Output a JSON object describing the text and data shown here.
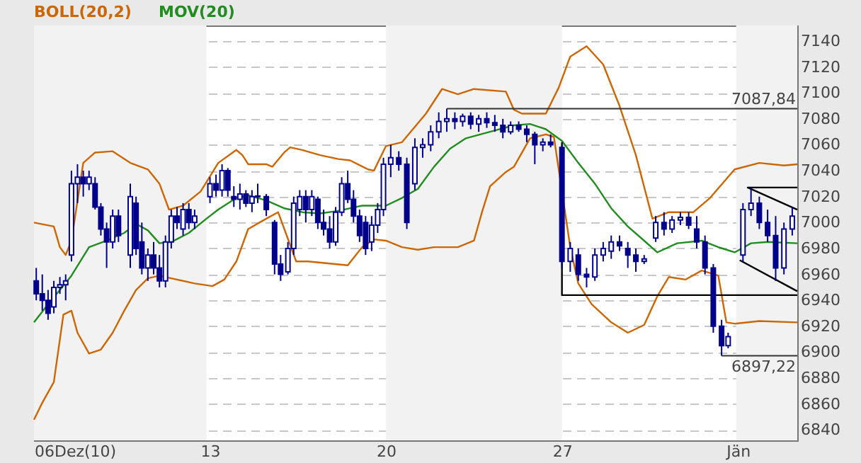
{
  "chart_data": {
    "type": "candlestick",
    "color": "#00008b",
    "x": [
      6.09,
      6.33,
      6.56,
      6.79,
      7.03,
      7.26,
      7.49,
      7.73,
      7.96,
      8.19,
      8.43,
      8.66,
      8.89,
      9.13,
      9.36,
      9.83,
      10.06,
      10.29,
      10.53,
      10.76,
      10.99,
      11.23,
      11.46,
      11.69,
      11.93,
      12.16,
      12.39,
      13,
      13.24,
      13.48,
      13.71,
      13.95,
      14.19,
      14.43,
      14.67,
      14.9,
      15.24,
      15.57,
      15.81,
      16.1,
      16.33,
      16.57,
      16.81,
      17.05,
      17.29,
      17.52,
      17.76,
      18,
      18.24,
      18.48,
      18.71,
      18.95,
      19.19,
      19.43,
      19.67,
      19.9,
      20.19,
      20.51,
      20.83,
      21.15,
      21.46,
      21.78,
      22.1,
      22.42,
      22.74,
      23.05,
      23.37,
      23.69,
      24.01,
      24.33,
      24.65,
      24.96,
      25.28,
      25.6,
      25.92,
      26.24,
      26.55,
      27,
      27.33,
      27.65,
      27.98,
      28.31,
      28.64,
      28.96,
      29.29,
      29.62,
      29.94,
      30.27,
      30.73,
      31.06,
      31.38,
      31.71,
      32.04,
      32.36,
      32.69,
      33.02,
      33.35,
      33.61,
      34.2,
      34.52,
      34.85,
      35.18,
      35.5,
      35.83,
      36.16
    ],
    "ohlc": [
      [
        6955,
        6965,
        6940,
        6945
      ],
      [
        6945,
        6960,
        6932,
        6940
      ],
      [
        6940,
        6948,
        6925,
        6930
      ],
      [
        6935,
        6955,
        6930,
        6950
      ],
      [
        6950,
        6958,
        6945,
        6952
      ],
      [
        6952,
        6960,
        6940,
        6955
      ],
      [
        6975,
        7040,
        6970,
        7030
      ],
      [
        7030,
        7045,
        7015,
        7035
      ],
      [
        7035,
        7040,
        7020,
        7030
      ],
      [
        7030,
        7040,
        7025,
        7035
      ],
      [
        7030,
        7035,
        7010,
        7012
      ],
      [
        7012,
        7015,
        6990,
        6995
      ],
      [
        6995,
        7000,
        6965,
        6985
      ],
      [
        6985,
        7010,
        6980,
        7005
      ],
      [
        7005,
        7010,
        6985,
        6990
      ],
      [
        6975,
        7030,
        6965,
        7020
      ],
      [
        7015,
        7020,
        6975,
        6980
      ],
      [
        6985,
        7000,
        6960,
        6965
      ],
      [
        6965,
        6980,
        6955,
        6975
      ],
      [
        6975,
        6985,
        6960,
        6965
      ],
      [
        6965,
        6975,
        6950,
        6955
      ],
      [
        6955,
        6990,
        6950,
        6985
      ],
      [
        6985,
        7010,
        6980,
        7005
      ],
      [
        7005,
        7012,
        6995,
        7000
      ],
      [
        6995,
        7015,
        6990,
        7010
      ],
      [
        7010,
        7015,
        6995,
        7000
      ],
      [
        7000,
        7010,
        6995,
        7005
      ],
      [
        7020,
        7035,
        7015,
        7030
      ],
      [
        7030,
        7037,
        7020,
        7025
      ],
      [
        7025,
        7045,
        7020,
        7040
      ],
      [
        7040,
        7042,
        7020,
        7025
      ],
      [
        7020,
        7028,
        7012,
        7018
      ],
      [
        7018,
        7030,
        7010,
        7022
      ],
      [
        7022,
        7025,
        7012,
        7015
      ],
      [
        7015,
        7025,
        7008,
        7020
      ],
      [
        7020,
        7030,
        7015,
        7020.5
      ],
      [
        7020,
        7022,
        7005,
        7010
      ],
      [
        7000,
        7002,
        6960,
        6968
      ],
      [
        6968,
        6975,
        6955,
        6960
      ],
      [
        6962,
        6985,
        6960,
        6980
      ],
      [
        6980,
        7020,
        6975,
        7015
      ],
      [
        7010,
        7025,
        7005,
        7020
      ],
      [
        7020,
        7025,
        7000,
        7010
      ],
      [
        7010,
        7025,
        7005,
        7020
      ],
      [
        7018,
        7020,
        6995,
        7000
      ],
      [
        7000,
        7010,
        6990,
        6995
      ],
      [
        6995,
        7005,
        6980,
        6985
      ],
      [
        6985,
        7012,
        6982,
        7008
      ],
      [
        7008,
        7035,
        7005,
        7030
      ],
      [
        7030,
        7040,
        7015,
        7018
      ],
      [
        7018,
        7025,
        7000,
        7005
      ],
      [
        7005,
        7010,
        6985,
        6990
      ],
      [
        7000,
        7005,
        6975,
        6980
      ],
      [
        6985,
        7005,
        6978,
        6998
      ],
      [
        6998,
        7015,
        6992,
        7010
      ],
      [
        7010,
        7050,
        7005,
        7045
      ],
      [
        7045,
        7060,
        7035,
        7050
      ],
      [
        7050,
        7055,
        7040,
        7045
      ],
      [
        7045,
        7050,
        6995,
        7000
      ],
      [
        7030,
        7065,
        7025,
        7058
      ],
      [
        7058,
        7065,
        7050,
        7060
      ],
      [
        7060,
        7075,
        7055,
        7070
      ],
      [
        7070,
        7085,
        7065,
        7078
      ],
      [
        7078,
        7087.84,
        7070,
        7080
      ],
      [
        7080,
        7085,
        7072,
        7078
      ],
      [
        7078,
        7084,
        7074,
        7082
      ],
      [
        7082,
        7085,
        7072,
        7076
      ],
      [
        7076,
        7083,
        7070,
        7080
      ],
      [
        7080,
        7085,
        7073,
        7077
      ],
      [
        7077,
        7083,
        7070,
        7075
      ],
      [
        7075,
        7080,
        7065,
        7070
      ],
      [
        7070,
        7078,
        7068,
        7075
      ],
      [
        7075,
        7078,
        7070,
        7072
      ],
      [
        7072,
        7075,
        7062,
        7068
      ],
      [
        7068,
        7070,
        7045,
        7060
      ],
      [
        7060,
        7065,
        7055,
        7062
      ],
      [
        7062,
        7068,
        7058,
        7060
      ],
      [
        7058,
        7060,
        6965,
        6970
      ],
      [
        6970,
        6985,
        6962,
        6980
      ],
      [
        6975,
        6980,
        6955,
        6960
      ],
      [
        6960,
        6965,
        6950,
        6958
      ],
      [
        6958,
        6980,
        6955,
        6975
      ],
      [
        6975,
        6985,
        6970,
        6980
      ],
      [
        6978,
        6990,
        6972,
        6985
      ],
      [
        6985,
        6990,
        6978,
        6982
      ],
      [
        6980,
        6985,
        6965,
        6975
      ],
      [
        6975,
        6980,
        6962,
        6970
      ],
      [
        6970,
        6975,
        6968,
        6972
      ],
      [
        6988,
        7005,
        6985,
        7000
      ],
      [
        7000,
        7008,
        6990,
        6995
      ],
      [
        6995,
        7005,
        6992,
        7002
      ],
      [
        7002,
        7008,
        6998,
        7004
      ],
      [
        7004,
        7008,
        6995,
        6998
      ],
      [
        6995,
        7005,
        6980,
        6985
      ],
      [
        6985,
        6990,
        6960,
        6965
      ],
      [
        6965,
        6968,
        6915,
        6920
      ],
      [
        6920,
        6925,
        6897.22,
        6905
      ],
      [
        6905,
        6915,
        6903,
        6912
      ],
      [
        6975,
        7015,
        6970,
        7010
      ],
      [
        7010,
        7027,
        7005,
        7015
      ],
      [
        7015,
        7020,
        6995,
        7000
      ],
      [
        7000,
        7010,
        6985,
        6990
      ],
      [
        6990,
        7005,
        6955,
        6965
      ],
      [
        6965,
        7000,
        6960,
        6995
      ],
      [
        6995,
        7012,
        6990,
        7005
      ]
    ],
    "series": [
      {
        "name": "BOLL(20,2)",
        "type": "line",
        "color": "#cc6600",
        "x": [
          6,
          6.79,
          7.03,
          7.26,
          7.49,
          7.96,
          8.43,
          9.13,
          9.83,
          10.53,
          10.99,
          11.37,
          11.93,
          12.63,
          13.33,
          14.05,
          14.29,
          14.52,
          15.24,
          15.48,
          15.95,
          16.19,
          16.67,
          17.38,
          18.1,
          18.57,
          19.29,
          19.52,
          20,
          20.64,
          21.59,
          22.23,
          22.86,
          23.5,
          24.77,
          25.09,
          25.41,
          26.36,
          26.87,
          27.33,
          27.98,
          28.64,
          29.29,
          29.94,
          30.6,
          31.25,
          32.23,
          32.89,
          33.87,
          34.85,
          35.83,
          36.36
        ],
        "values": [
          7000,
          6997,
          6981,
          6975,
          6986,
          7046,
          7054,
          7055,
          7046,
          7041,
          7030,
          7010,
          7013,
          7024,
          7046,
          7056,
          7052,
          7045,
          7045,
          7043,
          7054,
          7058,
          7056,
          7052,
          7049,
          7048,
          7041,
          7040,
          7059,
          7062,
          7084,
          7103,
          7099,
          7103,
          7101,
          7087,
          7084,
          7084,
          7104,
          7128,
          7136,
          7122,
          7090,
          7052,
          7003,
          7008,
          7008,
          7019,
          7041,
          7046,
          7044,
          7045
        ]
      },
      {
        "type": "line",
        "color": "#cc6600",
        "x": [
          6,
          6.33,
          6.79,
          7.17,
          7.49,
          7.73,
          8.19,
          8.66,
          9.13,
          9.59,
          10.06,
          10.53,
          10.99,
          11.46,
          12.39,
          13.1,
          13.57,
          14.05,
          14.52,
          15.24,
          15.71,
          16.43,
          16.9,
          18.48,
          19.05,
          19.52,
          20,
          20.64,
          21.27,
          21.91,
          22.86,
          23.5,
          23.82,
          24.14,
          24.77,
          25.09,
          25.73,
          26.36,
          26.68,
          27.33,
          27.65,
          28.18,
          28.96,
          29.62,
          30.27,
          30.79,
          31.25,
          31.91,
          32.56,
          33.22,
          33.54,
          33.87,
          34.85,
          36.36
        ],
        "values": [
          6848,
          6861,
          6877,
          6929,
          6932,
          6915,
          6899,
          6902,
          6915,
          6932,
          6948,
          6957,
          6959,
          6957,
          6953,
          6951,
          6956,
          6970,
          6995,
          7003,
          7008,
          6970,
          6970,
          6967,
          6981,
          6987,
          6986,
          6981,
          6979,
          6981,
          6981,
          6986,
          7008,
          7028,
          7039,
          7043,
          7065,
          7068,
          7066,
          6981,
          6953,
          6937,
          6923,
          6915,
          6921,
          6943,
          6958,
          6956,
          6963,
          6959,
          6923,
          6922,
          6924,
          6923
        ]
      },
      {
        "name": "MOV(20)",
        "type": "line",
        "color": "#228b22",
        "x": [
          6,
          6.56,
          7.03,
          7.49,
          8.19,
          8.89,
          9.59,
          10.06,
          10.53,
          10.99,
          11.46,
          12.16,
          12.86,
          13.33,
          14.05,
          14.52,
          15.24,
          15.95,
          16.67,
          17.38,
          18.1,
          19.05,
          20,
          20.64,
          21.27,
          21.91,
          22.55,
          23.18,
          24.14,
          25.09,
          25.73,
          26.36,
          27,
          27.65,
          28.31,
          28.96,
          29.62,
          30.27,
          30.79,
          31.58,
          32.56,
          33.22,
          33.87,
          34.52,
          35.18,
          36.36
        ],
        "values": [
          6923,
          6937,
          6948,
          6959,
          6981,
          6986,
          6992,
          6999,
          6994,
          6984,
          6985,
          6992,
          7003,
          7010,
          7019,
          7021,
          7017,
          7011,
          7008,
          7007,
          7009,
          7013,
          7013,
          7019,
          7026,
          7043,
          7057,
          7065,
          7070,
          7075,
          7076,
          7072,
          7063,
          7046,
          7030,
          7011,
          6997,
          6986,
          6977,
          6984,
          6986,
          6981,
          6977,
          6984,
          6985,
          6984
        ]
      },
      {
        "type": "line",
        "color": "#000000",
        "x": [
          27,
          27,
          36.36
        ],
        "values": [
          7062,
          6944,
          6944
        ]
      },
      {
        "type": "line",
        "color": "#000000",
        "x": [
          36.36,
          34.39,
          36.36
        ],
        "values": [
          7027,
          7027,
          7010
        ]
      },
      {
        "type": "line",
        "color": "#000000",
        "x": [
          34.07,
          36.36
        ],
        "values": [
          6971,
          6947
        ]
      }
    ],
    "xlim": [
      6,
      36.36
    ],
    "xticks": [
      {
        "value": 6,
        "label": "06Dez(10)"
      },
      13,
      20,
      27,
      {
        "value": 34,
        "label": "Jän"
      }
    ],
    "ylim": [
      6832,
      7152
    ],
    "yticks": [
      6840,
      6860,
      6880,
      6900,
      6920,
      6940,
      6960,
      6980,
      7000,
      7020,
      7040,
      7060,
      7080,
      7100,
      7120,
      7140
    ],
    "bands": [
      {
        "axis": "x",
        "from": 6,
        "to": 12.86,
        "color": "#f2f2f2"
      },
      {
        "axis": "x",
        "from": 20,
        "to": 27,
        "color": "#f2f2f2"
      },
      {
        "axis": "x",
        "from": 33.93,
        "to": 36.36,
        "color": "#f2f2f2"
      }
    ],
    "annotations": [
      {
        "text": "7087,84",
        "x": 22.42,
        "y": 7087.84
      },
      {
        "text": "6897,22",
        "x": 33.35,
        "y": 6897.22
      }
    ],
    "grid": "y",
    "legend": "top left",
    "line_style": "solid",
    "marker": "none"
  }
}
